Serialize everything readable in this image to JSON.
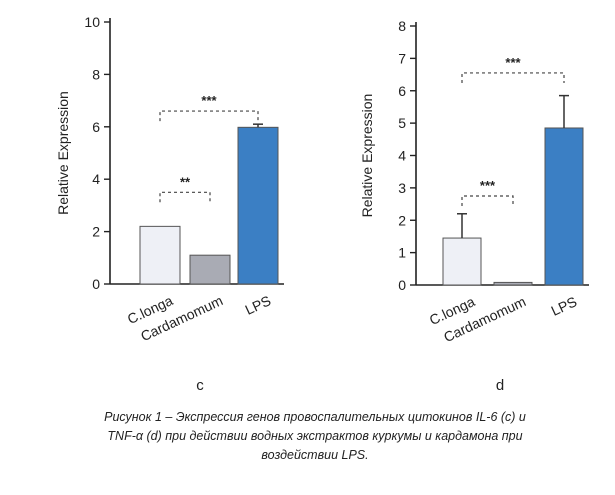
{
  "chart_data": [
    {
      "type": "bar",
      "panel_label": "c",
      "ylabel": "Relative Expression",
      "ylim": [
        0,
        10
      ],
      "yticks": [
        0,
        2,
        4,
        6,
        8,
        10
      ],
      "categories": [
        "C.longa",
        "Cardamomum",
        "LPS"
      ],
      "values": [
        2.2,
        1.1,
        5.98
      ],
      "errors": [
        0,
        0,
        0.12
      ],
      "colors": [
        "#eef0f6",
        "#a9abb4",
        "#3b7fc4"
      ],
      "significance": [
        {
          "from": 0,
          "to": 1,
          "label": "**",
          "y": 3.5
        },
        {
          "from": 0,
          "to": 2,
          "label": "***",
          "y": 6.6
        }
      ]
    },
    {
      "type": "bar",
      "panel_label": "d",
      "ylabel": "Relative Expression",
      "ylim": [
        0,
        8
      ],
      "yticks": [
        0,
        1,
        2,
        3,
        4,
        5,
        6,
        7,
        8
      ],
      "categories": [
        "C.longa",
        "Cardamomum",
        "LPS"
      ],
      "values": [
        1.45,
        0.08,
        4.85
      ],
      "errors": [
        0.75,
        0,
        1.0
      ],
      "colors": [
        "#eef0f6",
        "#a9abb4",
        "#3b7fc4"
      ],
      "significance": [
        {
          "from": 0,
          "to": 1,
          "label": "***",
          "y": 2.75
        },
        {
          "from": 0,
          "to": 2,
          "label": "***",
          "y": 6.55
        }
      ]
    }
  ],
  "caption": "Рисунок 1 – Экспрессия генов провоспалительных цитокинов IL-6 (c) и TNF-α (d) при действии водных экстрактов куркумы и кардамона при воздействии LPS."
}
